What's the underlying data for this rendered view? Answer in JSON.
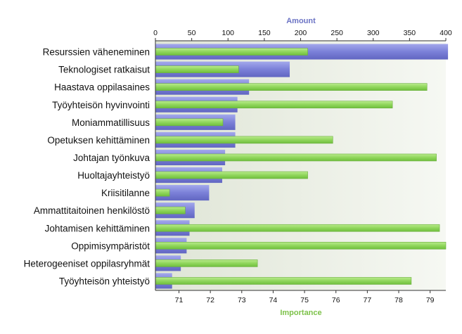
{
  "chart_data": {
    "type": "bar",
    "orientation": "horizontal",
    "categories": [
      "Resurssien väheneminen",
      "Teknologiset ratkaisut",
      "Haastava oppilasaines",
      "Työyhteisön hyvinvointi",
      "Moniammatillisuus",
      "Opetuksen kehittäminen",
      "Johtajan työnkuva",
      "Huoltajayhteistyö",
      "Kriisitilanne",
      "Ammattitaitoinen henkilöstö",
      "Johtamisen kehittäminen",
      "Oppimisympäristöt",
      "Heterogeeniset oppilasryhmät",
      "Työyhteisön yhteistyö"
    ],
    "x_top_label": "Amount",
    "x_bottom_label": "Importance",
    "x_top_range": [
      0,
      400
    ],
    "x_top_ticks": [
      0,
      50,
      100,
      150,
      200,
      250,
      300,
      350,
      400
    ],
    "x_bottom_range": [
      70.25,
      79.5
    ],
    "x_bottom_ticks": [
      71,
      72,
      73,
      74,
      75,
      76,
      77,
      78,
      79
    ],
    "series": [
      {
        "name": "Amount",
        "axis": "top",
        "color": "#7b80d8",
        "values": [
          403,
          185,
          129,
          113,
          110,
          110,
          96,
          92,
          74,
          54,
          47,
          43,
          35,
          23
        ]
      },
      {
        "name": "Importance",
        "axis": "bottom",
        "color": "#90d65c",
        "values": [
          75.1,
          72.9,
          78.9,
          77.8,
          72.4,
          75.9,
          79.2,
          75.1,
          70.7,
          71.2,
          79.3,
          79.5,
          73.5,
          78.4
        ]
      }
    ],
    "colors": {
      "amount_axis_title": "#6b73c4",
      "importance_axis_title": "#7dc24a",
      "plot_bg_left": "#dfe5d6",
      "plot_bg_right": "#f6f8f3"
    }
  }
}
